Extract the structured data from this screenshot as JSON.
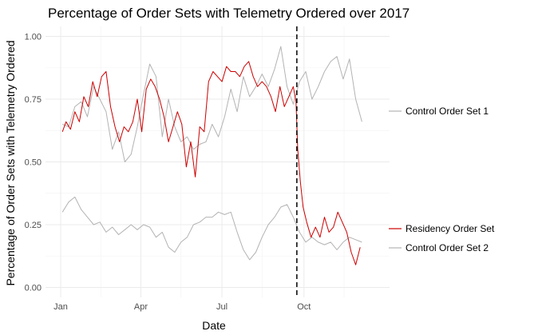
{
  "chart_data": {
    "type": "line",
    "title": "Percentage of Order Sets with Telemetry Ordered over 2017",
    "xlabel": "Date",
    "ylabel": "Percentage of Order Sets with Telemetry Ordered",
    "x_tick_labels": [
      "Jan",
      "Apr",
      "Jul",
      "Oct"
    ],
    "x_tick_dates": [
      "2017-01-01",
      "2017-04-01",
      "2017-07-01",
      "2017-10-01"
    ],
    "xlim": [
      "2016-12-15",
      "2018-01-05"
    ],
    "ylim": [
      -0.04,
      1.04
    ],
    "y_ticks": [
      0.0,
      0.25,
      0.5,
      0.75,
      1.0
    ],
    "y_tick_labels": [
      "0.00",
      "0.25",
      "0.50",
      "0.75",
      "1.00"
    ],
    "grid": true,
    "legend": "direct labels at right",
    "vline": {
      "x": "2017-09-23",
      "style": "dashed",
      "color": "#000000"
    },
    "colors": {
      "residency": "#cc0000",
      "control": "#b3b3b3"
    },
    "series": [
      {
        "name": "Control Order Set 1",
        "color": "#b3b3b3",
        "x": [
          "2017-01-03",
          "2017-01-10",
          "2017-01-17",
          "2017-01-24",
          "2017-01-31",
          "2017-02-07",
          "2017-02-14",
          "2017-02-21",
          "2017-02-28",
          "2017-03-07",
          "2017-03-14",
          "2017-03-21",
          "2017-03-28",
          "2017-04-04",
          "2017-04-11",
          "2017-04-18",
          "2017-04-25",
          "2017-05-02",
          "2017-05-09",
          "2017-05-16",
          "2017-05-23",
          "2017-05-30",
          "2017-06-06",
          "2017-06-13",
          "2017-06-20",
          "2017-06-27",
          "2017-07-04",
          "2017-07-11",
          "2017-07-18",
          "2017-07-25",
          "2017-08-01",
          "2017-08-08",
          "2017-08-15",
          "2017-08-22",
          "2017-08-29",
          "2017-09-05",
          "2017-09-12",
          "2017-09-19",
          "2017-09-26",
          "2017-10-03",
          "2017-10-10",
          "2017-10-17",
          "2017-10-24",
          "2017-10-31",
          "2017-11-07",
          "2017-11-14",
          "2017-11-21",
          "2017-11-28",
          "2017-12-05"
        ],
        "values": [
          0.65,
          0.64,
          0.72,
          0.74,
          0.68,
          0.8,
          0.75,
          0.7,
          0.55,
          0.62,
          0.5,
          0.53,
          0.64,
          0.77,
          0.89,
          0.84,
          0.6,
          0.75,
          0.64,
          0.58,
          0.6,
          0.55,
          0.57,
          0.58,
          0.65,
          0.6,
          0.68,
          0.79,
          0.7,
          0.84,
          0.76,
          0.8,
          0.85,
          0.8,
          0.87,
          0.96,
          0.8,
          0.73,
          0.82,
          0.86,
          0.75,
          0.8,
          0.86,
          0.9,
          0.92,
          0.83,
          0.91,
          0.75,
          0.66
        ]
      },
      {
        "name": "Residency Order Set",
        "color": "#cc0000",
        "x": [
          "2017-01-03",
          "2017-01-07",
          "2017-01-12",
          "2017-01-17",
          "2017-01-22",
          "2017-01-27",
          "2017-02-01",
          "2017-02-06",
          "2017-02-11",
          "2017-02-16",
          "2017-02-21",
          "2017-02-26",
          "2017-03-03",
          "2017-03-08",
          "2017-03-13",
          "2017-03-18",
          "2017-03-23",
          "2017-03-28",
          "2017-04-02",
          "2017-04-07",
          "2017-04-12",
          "2017-04-17",
          "2017-04-22",
          "2017-04-27",
          "2017-05-02",
          "2017-05-07",
          "2017-05-12",
          "2017-05-17",
          "2017-05-22",
          "2017-05-27",
          "2017-06-01",
          "2017-06-06",
          "2017-06-11",
          "2017-06-16",
          "2017-06-21",
          "2017-06-26",
          "2017-07-01",
          "2017-07-06",
          "2017-07-11",
          "2017-07-16",
          "2017-07-21",
          "2017-07-26",
          "2017-07-31",
          "2017-08-05",
          "2017-08-10",
          "2017-08-15",
          "2017-08-20",
          "2017-08-25",
          "2017-08-30",
          "2017-09-04",
          "2017-09-09",
          "2017-09-14",
          "2017-09-19",
          "2017-09-22",
          "2017-09-24",
          "2017-09-27",
          "2017-09-30",
          "2017-10-04",
          "2017-10-09",
          "2017-10-14",
          "2017-10-19",
          "2017-10-24",
          "2017-10-29",
          "2017-11-03",
          "2017-11-08",
          "2017-11-13",
          "2017-11-18",
          "2017-11-23",
          "2017-11-28",
          "2017-12-03"
        ],
        "values": [
          0.62,
          0.66,
          0.63,
          0.7,
          0.66,
          0.76,
          0.72,
          0.82,
          0.76,
          0.84,
          0.86,
          0.72,
          0.64,
          0.58,
          0.64,
          0.62,
          0.66,
          0.75,
          0.62,
          0.79,
          0.83,
          0.8,
          0.75,
          0.68,
          0.58,
          0.64,
          0.7,
          0.65,
          0.48,
          0.58,
          0.44,
          0.64,
          0.62,
          0.82,
          0.86,
          0.84,
          0.82,
          0.88,
          0.86,
          0.86,
          0.84,
          0.88,
          0.9,
          0.84,
          0.8,
          0.82,
          0.8,
          0.76,
          0.7,
          0.8,
          0.72,
          0.76,
          0.8,
          0.74,
          0.55,
          0.42,
          0.32,
          0.26,
          0.2,
          0.24,
          0.2,
          0.28,
          0.22,
          0.24,
          0.3,
          0.26,
          0.22,
          0.14,
          0.09,
          0.16
        ]
      },
      {
        "name": "Control Order Set 2",
        "color": "#b3b3b3",
        "x": [
          "2017-01-03",
          "2017-01-10",
          "2017-01-17",
          "2017-01-24",
          "2017-01-31",
          "2017-02-07",
          "2017-02-14",
          "2017-02-21",
          "2017-02-28",
          "2017-03-07",
          "2017-03-14",
          "2017-03-21",
          "2017-03-28",
          "2017-04-04",
          "2017-04-11",
          "2017-04-18",
          "2017-04-25",
          "2017-05-02",
          "2017-05-09",
          "2017-05-16",
          "2017-05-23",
          "2017-05-30",
          "2017-06-06",
          "2017-06-13",
          "2017-06-20",
          "2017-06-27",
          "2017-07-04",
          "2017-07-11",
          "2017-07-18",
          "2017-07-25",
          "2017-08-01",
          "2017-08-08",
          "2017-08-15",
          "2017-08-22",
          "2017-08-29",
          "2017-09-05",
          "2017-09-12",
          "2017-09-19",
          "2017-09-26",
          "2017-10-03",
          "2017-10-10",
          "2017-10-17",
          "2017-10-24",
          "2017-10-31",
          "2017-11-07",
          "2017-11-14",
          "2017-11-21",
          "2017-11-28",
          "2017-12-05"
        ],
        "values": [
          0.3,
          0.34,
          0.36,
          0.31,
          0.28,
          0.25,
          0.26,
          0.22,
          0.24,
          0.21,
          0.23,
          0.25,
          0.23,
          0.25,
          0.24,
          0.2,
          0.22,
          0.16,
          0.14,
          0.18,
          0.2,
          0.25,
          0.26,
          0.28,
          0.28,
          0.3,
          0.29,
          0.3,
          0.22,
          0.15,
          0.11,
          0.14,
          0.2,
          0.25,
          0.28,
          0.32,
          0.33,
          0.28,
          0.22,
          0.18,
          0.2,
          0.18,
          0.17,
          0.18,
          0.15,
          0.18,
          0.2,
          0.19,
          0.18
        ]
      }
    ]
  }
}
